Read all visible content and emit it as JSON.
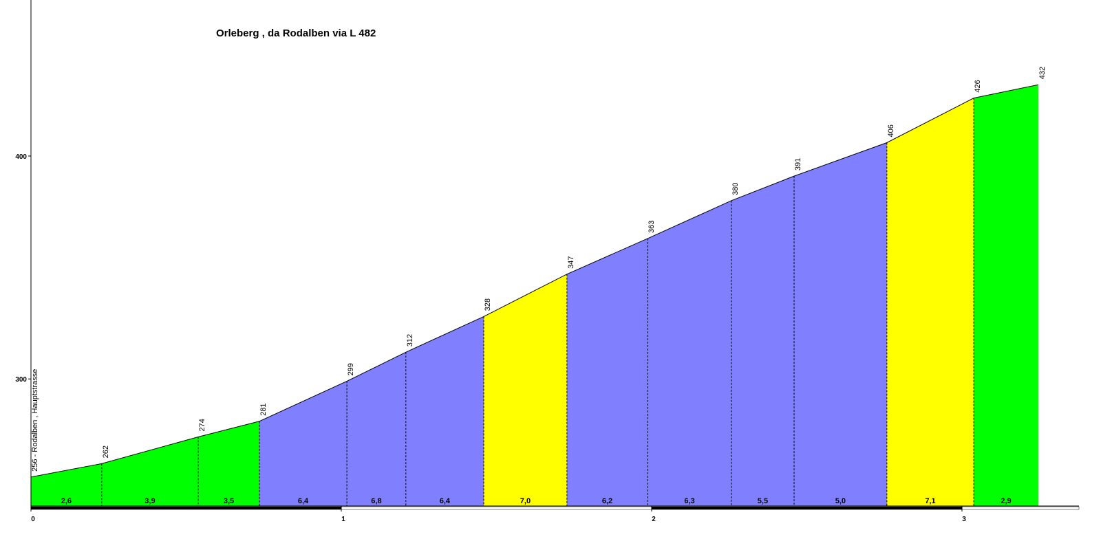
{
  "chart_data": {
    "type": "area",
    "title": "Orleberg , da Rodalben via L 482",
    "x": [
      0,
      0.228,
      0.539,
      0.736,
      1.018,
      1.208,
      1.459,
      1.727,
      1.987,
      2.257,
      2.459,
      2.758,
      3.038,
      3.246
    ],
    "values": [
      256,
      262,
      274,
      281,
      299,
      312,
      328,
      347,
      363,
      380,
      391,
      406,
      426,
      432
    ],
    "value_labels": [
      "256 - Rodalben , Hauptstrasse",
      "262",
      "274",
      "281",
      "299",
      "312",
      "328",
      "347",
      "363",
      "380",
      "391",
      "406",
      "426",
      "432"
    ],
    "line_color": "#000000",
    "segments": {
      "values": [
        2.6,
        3.9,
        3.5,
        6.4,
        6.8,
        6.4,
        7.0,
        6.2,
        6.3,
        5.5,
        5.0,
        7.1,
        2.9
      ],
      "value_labels": [
        "2,6",
        "3,9",
        "3,5",
        "6,4",
        "6,8",
        "6,4",
        "7,0",
        "6,2",
        "6,3",
        "5,5",
        "5,0",
        "7,1",
        "2,9"
      ],
      "colors": [
        "#00ff00",
        "#00ff00",
        "#00ff00",
        "#8080ff",
        "#8080ff",
        "#8080ff",
        "#ffff00",
        "#8080ff",
        "#8080ff",
        "#8080ff",
        "#8080ff",
        "#ffff00",
        "#00ff00"
      ]
    },
    "xlim": [
      0,
      3.377
    ],
    "ylim": [
      243,
      470
    ],
    "xticks": [
      0,
      1,
      2,
      3
    ],
    "yticks": [
      300,
      400
    ]
  }
}
